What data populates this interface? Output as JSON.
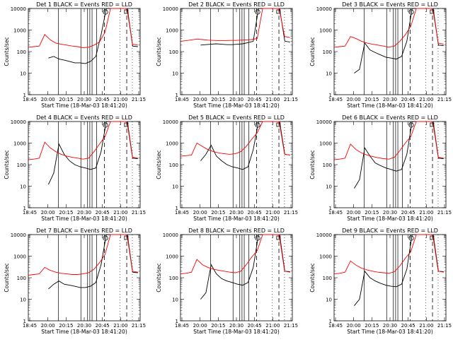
{
  "figure": {
    "xlabel": "Start Time (18-Mar-03 18:41:20)",
    "ylabel": "Counts/sec"
  },
  "chart_data": [
    {
      "type": "line",
      "title": "Det 1  BLACK = Events  RED = LLD",
      "xlabel": "Start Time (18-Mar-03 18:41:20)",
      "ylabel": "Counts/sec",
      "ylim": [
        1,
        10000
      ],
      "yscale": "log",
      "x_ticks": [
        "18:45",
        "20:00",
        "20:15",
        "20:30",
        "20:45",
        "21:00",
        "21:15"
      ],
      "y_ticks": [
        "1",
        "10",
        "100",
        "1000",
        "10000"
      ],
      "markers": [
        "O",
        "□"
      ],
      "series": [
        {
          "name": "Events",
          "color": "#000000",
          "values": [
            50,
            60,
            45,
            40,
            35,
            30,
            30,
            28,
            35,
            60,
            600,
            10000,
            10000,
            10000,
            10000,
            10000,
            180,
            170
          ]
        },
        {
          "name": "LLD",
          "color": "#ff0000",
          "values": [
            160,
            170,
            180,
            620,
            350,
            250,
            220,
            200,
            180,
            170,
            150,
            160,
            200,
            280,
            800,
            10000,
            10000,
            10000,
            10000,
            220,
            200
          ]
        }
      ]
    },
    {
      "type": "line",
      "title": "Det 2  BLACK = Events  RED = LLD",
      "xlabel": "Start Time (18-Mar-03 18:41:20)",
      "ylabel": "Counts/sec",
      "ylim": [
        1,
        10000
      ],
      "yscale": "log",
      "x_ticks": [
        "18:45",
        "20:00",
        "20:15",
        "20:30",
        "20:45",
        "21:00",
        "21:15"
      ],
      "y_ticks": [
        "1",
        "10",
        "100",
        "1000",
        "10000"
      ],
      "markers": [
        "O",
        "□"
      ],
      "series": [
        {
          "name": "Events",
          "color": "#000000",
          "values": [
            200,
            210,
            220,
            230,
            220,
            210,
            210,
            220,
            230,
            260,
            300,
            10000,
            10000,
            10000,
            10000,
            10000,
            300,
            280
          ]
        },
        {
          "name": "LLD",
          "color": "#ff0000",
          "values": [
            300,
            320,
            350,
            380,
            360,
            340,
            330,
            320,
            320,
            330,
            330,
            340,
            350,
            360,
            400,
            10000,
            10000,
            10000,
            10000,
            500,
            450
          ]
        }
      ]
    },
    {
      "type": "line",
      "title": "Det 3  BLACK = Events  RED = LLD",
      "xlabel": "Start Time (18-Mar-03 18:41:20)",
      "ylabel": "Counts/sec",
      "ylim": [
        1,
        10000
      ],
      "yscale": "log",
      "x_ticks": [
        "18:45",
        "20:00",
        "20:15",
        "20:30",
        "20:45",
        "21:00",
        "21:15"
      ],
      "y_ticks": [
        "1",
        "10",
        "100",
        "1000",
        "10000"
      ],
      "markers": [
        "O",
        "□"
      ],
      "series": [
        {
          "name": "Events",
          "color": "#000000",
          "values": [
            10,
            15,
            250,
            120,
            90,
            70,
            55,
            50,
            45,
            60,
            300,
            10000,
            10000,
            10000,
            10000,
            10000,
            200,
            190
          ]
        },
        {
          "name": "LLD",
          "color": "#ff0000",
          "values": [
            160,
            170,
            180,
            500,
            400,
            300,
            250,
            220,
            200,
            180,
            160,
            180,
            300,
            600,
            1500,
            10000,
            10000,
            10000,
            10000,
            250,
            220
          ]
        }
      ]
    },
    {
      "type": "line",
      "title": "Det 4  BLACK = Events  RED = LLD",
      "xlabel": "Start Time (18-Mar-03 18:41:20)",
      "ylabel": "Counts/sec",
      "ylim": [
        1,
        10000
      ],
      "yscale": "log",
      "x_ticks": [
        "18:45",
        "20:00",
        "20:15",
        "20:30",
        "20:45",
        "21:00",
        "21:15"
      ],
      "y_ticks": [
        "1",
        "10",
        "100",
        "1000",
        "10000"
      ],
      "markers": [
        "O",
        "□"
      ],
      "series": [
        {
          "name": "Events",
          "color": "#000000",
          "values": [
            12,
            40,
            900,
            300,
            150,
            100,
            80,
            70,
            60,
            70,
            400,
            10000,
            10000,
            10000,
            10000,
            10000,
            200,
            190
          ]
        },
        {
          "name": "LLD",
          "color": "#ff0000",
          "values": [
            170,
            180,
            200,
            1100,
            600,
            400,
            300,
            250,
            220,
            200,
            180,
            200,
            400,
            900,
            2000,
            10000,
            10000,
            10000,
            10000,
            220,
            200
          ]
        }
      ]
    },
    {
      "type": "line",
      "title": "Det 5  BLACK = Events  RED = LLD",
      "xlabel": "Start Time (18-Mar-03 18:41:20)",
      "ylabel": "Counts/sec",
      "ylim": [
        1,
        10000
      ],
      "yscale": "log",
      "x_ticks": [
        "18:45",
        "20:00",
        "20:15",
        "20:30",
        "20:45",
        "21:00",
        "21:15"
      ],
      "y_ticks": [
        "1",
        "10",
        "100",
        "1000",
        "10000"
      ],
      "markers": [
        "O",
        "□"
      ],
      "series": [
        {
          "name": "Events",
          "color": "#000000",
          "values": [
            150,
            300,
            800,
            250,
            150,
            100,
            80,
            70,
            60,
            80,
            500,
            10000,
            10000,
            10000,
            10000,
            10000,
            300,
            280
          ]
        },
        {
          "name": "LLD",
          "color": "#ff0000",
          "values": [
            250,
            260,
            280,
            1000,
            700,
            500,
            400,
            350,
            320,
            300,
            320,
            400,
            700,
            1500,
            3000,
            10000,
            10000,
            10000,
            10000,
            300,
            280
          ]
        }
      ]
    },
    {
      "type": "line",
      "title": "Det 6  BLACK = Events  RED = LLD",
      "xlabel": "Start Time (18-Mar-03 18:41:20)",
      "ylabel": "Counts/sec",
      "ylim": [
        1,
        10000
      ],
      "yscale": "log",
      "x_ticks": [
        "18:45",
        "20:00",
        "20:15",
        "20:30",
        "20:45",
        "21:00",
        "21:15"
      ],
      "y_ticks": [
        "1",
        "10",
        "100",
        "1000",
        "10000"
      ],
      "markers": [
        "O",
        "□"
      ],
      "series": [
        {
          "name": "Events",
          "color": "#000000",
          "values": [
            8,
            20,
            600,
            250,
            120,
            90,
            70,
            60,
            50,
            60,
            300,
            10000,
            10000,
            10000,
            10000,
            10000,
            200,
            190
          ]
        },
        {
          "name": "LLD",
          "color": "#ff0000",
          "values": [
            170,
            180,
            200,
            900,
            500,
            350,
            280,
            240,
            210,
            190,
            180,
            220,
            450,
            1000,
            2000,
            10000,
            10000,
            10000,
            10000,
            220,
            200
          ]
        }
      ]
    },
    {
      "type": "line",
      "title": "Det 7  BLACK = Events  RED = LLD",
      "xlabel": "Start Time (18-Mar-03 18:41:20)",
      "ylabel": "Counts/sec",
      "ylim": [
        1,
        10000
      ],
      "yscale": "log",
      "x_ticks": [
        "18:45",
        "20:00",
        "20:15",
        "20:30",
        "20:45",
        "21:00",
        "21:15"
      ],
      "y_ticks": [
        "1",
        "10",
        "100",
        "1000",
        "10000"
      ],
      "markers": [
        "O",
        "□"
      ],
      "series": [
        {
          "name": "Events",
          "color": "#000000",
          "values": [
            30,
            50,
            70,
            50,
            45,
            40,
            35,
            35,
            40,
            60,
            400,
            10000,
            10000,
            10000,
            10000,
            10000,
            180,
            170
          ]
        },
        {
          "name": "LLD",
          "color": "#ff0000",
          "values": [
            130,
            140,
            150,
            300,
            220,
            180,
            160,
            150,
            140,
            140,
            150,
            170,
            250,
            500,
            1200,
            10000,
            10000,
            10000,
            10000,
            200,
            180
          ]
        }
      ]
    },
    {
      "type": "line",
      "title": "Det 8  BLACK = Events  RED = LLD",
      "xlabel": "Start Time (18-Mar-03 18:41:20)",
      "ylabel": "Counts/sec",
      "ylim": [
        1,
        10000
      ],
      "yscale": "log",
      "x_ticks": [
        "18:45",
        "20:00",
        "20:15",
        "20:30",
        "20:45",
        "21:00",
        "21:15"
      ],
      "y_ticks": [
        "1",
        "10",
        "100",
        "1000",
        "10000"
      ],
      "markers": [
        "O",
        "□"
      ],
      "series": [
        {
          "name": "Events",
          "color": "#000000",
          "values": [
            10,
            20,
            400,
            150,
            90,
            70,
            60,
            50,
            45,
            60,
            300,
            10000,
            10000,
            10000,
            10000,
            10000,
            200,
            190
          ]
        },
        {
          "name": "LLD",
          "color": "#ff0000",
          "values": [
            150,
            160,
            180,
            700,
            400,
            300,
            250,
            220,
            200,
            180,
            170,
            200,
            400,
            900,
            1800,
            10000,
            10000,
            10000,
            10000,
            200,
            180
          ]
        }
      ]
    },
    {
      "type": "line",
      "title": "Det 9  BLACK = Events  RED = LLD",
      "xlabel": "Start Time (18-Mar-03 18:41:20)",
      "ylabel": "Counts/sec",
      "ylim": [
        1,
        10000
      ],
      "yscale": "log",
      "x_ticks": [
        "18:45",
        "20:00",
        "20:15",
        "20:30",
        "20:45",
        "21:00",
        "21:15"
      ],
      "y_ticks": [
        "1",
        "10",
        "100",
        "1000",
        "10000"
      ],
      "markers": [
        "O",
        "□"
      ],
      "series": [
        {
          "name": "Events",
          "color": "#000000",
          "values": [
            5,
            10,
            200,
            100,
            70,
            55,
            45,
            40,
            38,
            50,
            250,
            10000,
            10000,
            10000,
            10000,
            10000,
            200,
            190
          ]
        },
        {
          "name": "LLD",
          "color": "#ff0000",
          "values": [
            150,
            160,
            180,
            600,
            380,
            280,
            230,
            200,
            180,
            170,
            160,
            190,
            350,
            800,
            1600,
            10000,
            10000,
            10000,
            10000,
            200,
            180
          ]
        }
      ]
    }
  ]
}
